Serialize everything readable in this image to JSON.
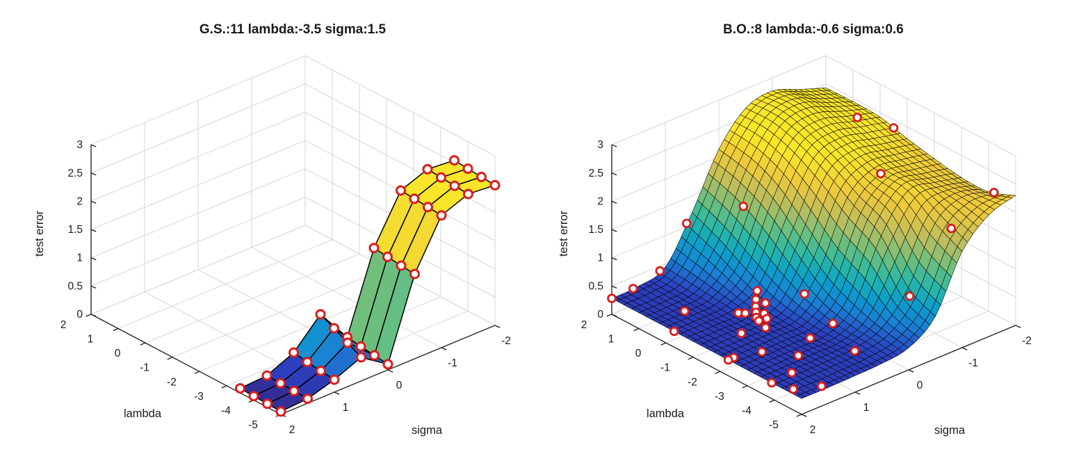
{
  "style": {
    "background": "#ffffff",
    "marker_color": "#dd1c1c",
    "axis_color": "#262626",
    "grid_color": "#d9d9d9",
    "text_color": "#1a1a1a",
    "surface_edge_color": "#000000",
    "clim": [
      0,
      2.5
    ],
    "colormap": "parula"
  },
  "chart_data": [
    {
      "type": "surface3d",
      "title": "G.S.:11 lambda:-3.5 sigma:1.5",
      "xlabel": "sigma",
      "ylabel": "lambda",
      "zlabel": "test error",
      "sigma_ticks": [
        2,
        1,
        0,
        -1,
        -2
      ],
      "lambda_ticks": [
        2,
        1,
        0,
        -1,
        -2,
        -3,
        -4,
        -5
      ],
      "z_ticks": [
        0,
        0.5,
        1,
        1.5,
        2,
        2.5,
        3
      ],
      "lambda_range": [
        -5,
        2
      ],
      "sigma_range": [
        -2,
        2
      ],
      "z_range": [
        0,
        3
      ],
      "mesh": "coarse",
      "surface": {
        "lambda": [
          -3.5,
          -4,
          -4.5,
          -5
        ],
        "sigma": [
          2,
          1.5,
          1,
          0.5,
          0,
          -0.5,
          -1,
          -1.5,
          -2
        ],
        "test_error": [
          [
            0.08,
            0.11,
            0.32,
            0.8,
            0.2,
            1.58,
            2.4,
            2.58,
            2.54
          ],
          [
            0.07,
            0.1,
            0.28,
            0.68,
            0.16,
            1.55,
            2.38,
            2.56,
            2.52
          ],
          [
            0.06,
            0.09,
            0.25,
            0.55,
            0.13,
            1.52,
            2.36,
            2.54,
            2.5
          ],
          [
            0.05,
            0.08,
            0.22,
            0.42,
            0.1,
            1.5,
            2.34,
            2.52,
            2.48
          ]
        ]
      },
      "markers": "grid-vertices"
    },
    {
      "type": "surface3d",
      "title": "B.O.:8 lambda:-0.6 sigma:0.6",
      "xlabel": "sigma",
      "ylabel": "lambda",
      "zlabel": "test error",
      "sigma_ticks": [
        2,
        1,
        0,
        -1,
        -2
      ],
      "lambda_ticks": [
        2,
        1,
        0,
        -1,
        -2,
        -3,
        -4,
        -5
      ],
      "z_ticks": [
        0,
        0.5,
        1,
        1.5,
        2,
        2.5,
        3
      ],
      "lambda_range": [
        -5,
        2
      ],
      "sigma_range": [
        -2,
        2
      ],
      "z_range": [
        0,
        3
      ],
      "mesh": "dense",
      "surface": {
        "lambda": [
          2,
          1,
          0,
          -1,
          -2,
          -3,
          -4,
          -5
        ],
        "sigma": [
          2,
          1.5,
          1,
          0.5,
          0,
          -0.5,
          -1,
          -1.5,
          -2
        ],
        "test_error": [
          [
            0.28,
            0.3,
            0.44,
            1.21,
            2.13,
            2.66,
            2.77,
            2.6,
            2.43
          ],
          [
            0.28,
            0.29,
            0.39,
            0.99,
            2.02,
            2.67,
            2.8,
            2.62,
            2.44
          ],
          [
            0.28,
            0.29,
            0.34,
            0.71,
            1.77,
            2.52,
            2.66,
            2.54,
            2.42
          ],
          [
            0.28,
            0.29,
            0.3,
            0.48,
            1.33,
            2.27,
            2.48,
            2.39,
            2.29
          ],
          [
            0.28,
            0.29,
            0.31,
            0.37,
            0.89,
            1.95,
            2.32,
            2.28,
            2.19
          ],
          [
            0.28,
            0.29,
            0.3,
            0.32,
            0.64,
            1.67,
            2.27,
            2.22,
            2.11
          ],
          [
            0.28,
            0.29,
            0.3,
            0.33,
            0.48,
            1.0,
            1.95,
            2.21,
            2.11
          ],
          [
            0.28,
            0.28,
            0.29,
            0.31,
            0.39,
            0.75,
            1.7,
            2.15,
            2.3
          ]
        ]
      },
      "markers": [
        [
          2,
          2
        ],
        [
          2,
          1.6
        ],
        [
          2,
          1.1
        ],
        [
          2,
          0.6
        ],
        [
          0.3,
          1.5
        ],
        [
          -0.3,
          2
        ],
        [
          -2.3,
          2
        ],
        [
          -0.7,
          1.0
        ],
        [
          -1.5,
          1.35
        ],
        [
          -2.3,
          1.9
        ],
        [
          -2.55,
          1.5
        ],
        [
          -1.7,
          1.0
        ],
        [
          -1.75,
          0.3
        ],
        [
          -2.85,
          0.75
        ],
        [
          -3.85,
          1.6
        ],
        [
          -3.9,
          2
        ],
        [
          -4.5,
          1.9
        ],
        [
          -4.85,
          1.55
        ],
        [
          -3.3,
          1.2
        ],
        [
          -2.9,
          0.35
        ],
        [
          -4.1,
          0.55
        ],
        [
          -4.15,
          -0.45
        ],
        [
          -0.6,
          0.6
        ],
        [
          -0.75,
          0.7
        ],
        [
          -0.9,
          0.78
        ],
        [
          -1.05,
          0.85
        ],
        [
          -1.2,
          0.92
        ],
        [
          -1.35,
          0.95
        ],
        [
          -1.0,
          0.65
        ],
        [
          -1.25,
          0.8
        ],
        [
          -0.85,
          0.95
        ],
        [
          -1.45,
          0.85
        ],
        [
          0.7,
          0.2
        ],
        [
          0.15,
          -1.65
        ],
        [
          -0.5,
          -2
        ],
        [
          -2,
          -1
        ],
        [
          -4.2,
          -2
        ],
        [
          -4.4,
          -1.1
        ]
      ]
    }
  ]
}
